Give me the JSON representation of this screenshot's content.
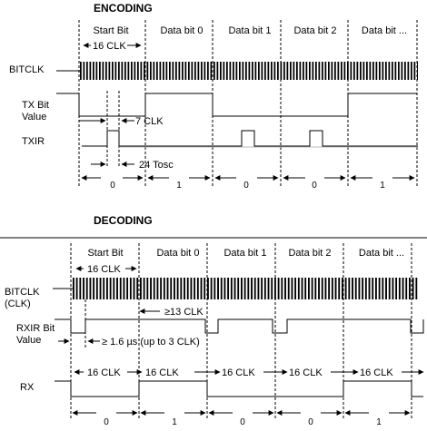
{
  "encoding": {
    "title": "ENCODING",
    "field_labels": [
      "Start Bit",
      "Data bit 0",
      "Data bit 1",
      "Data bit 2",
      "Data bit ..."
    ],
    "signal_bitclk": "BITCLK",
    "signal_tx_line1": "TX Bit",
    "signal_tx_line2": "Value",
    "signal_txir": "TXIR",
    "ann_16clk": "16 CLK",
    "ann_7clk": "7 CLK",
    "ann_24tosc": "24 Tosc",
    "bits": [
      "0",
      "1",
      "0",
      "0",
      "1"
    ]
  },
  "decoding": {
    "title": "DECODING",
    "field_labels": [
      "Start Bit",
      "Data bit 0",
      "Data bit 1",
      "Data bit 2",
      "Data bit ..."
    ],
    "signal_bitclk_line1": "BITCLK",
    "signal_bitclk_line2": "(CLK)",
    "signal_rxir_line1": "RXIR Bit",
    "signal_rxir_line2": "Value",
    "signal_rx": "RX",
    "ann_16clk": "16 CLK",
    "ann_13clk": "≥13 CLK",
    "ann_pulse": "≥ 1.6 µs (up to 3 CLK)",
    "rx_clk_labels": [
      "16 CLK",
      "16 CLK",
      "16 CLK",
      "16 CLK",
      "16 CLK"
    ],
    "bits": [
      "0",
      "1",
      "0",
      "0",
      "1"
    ]
  }
}
